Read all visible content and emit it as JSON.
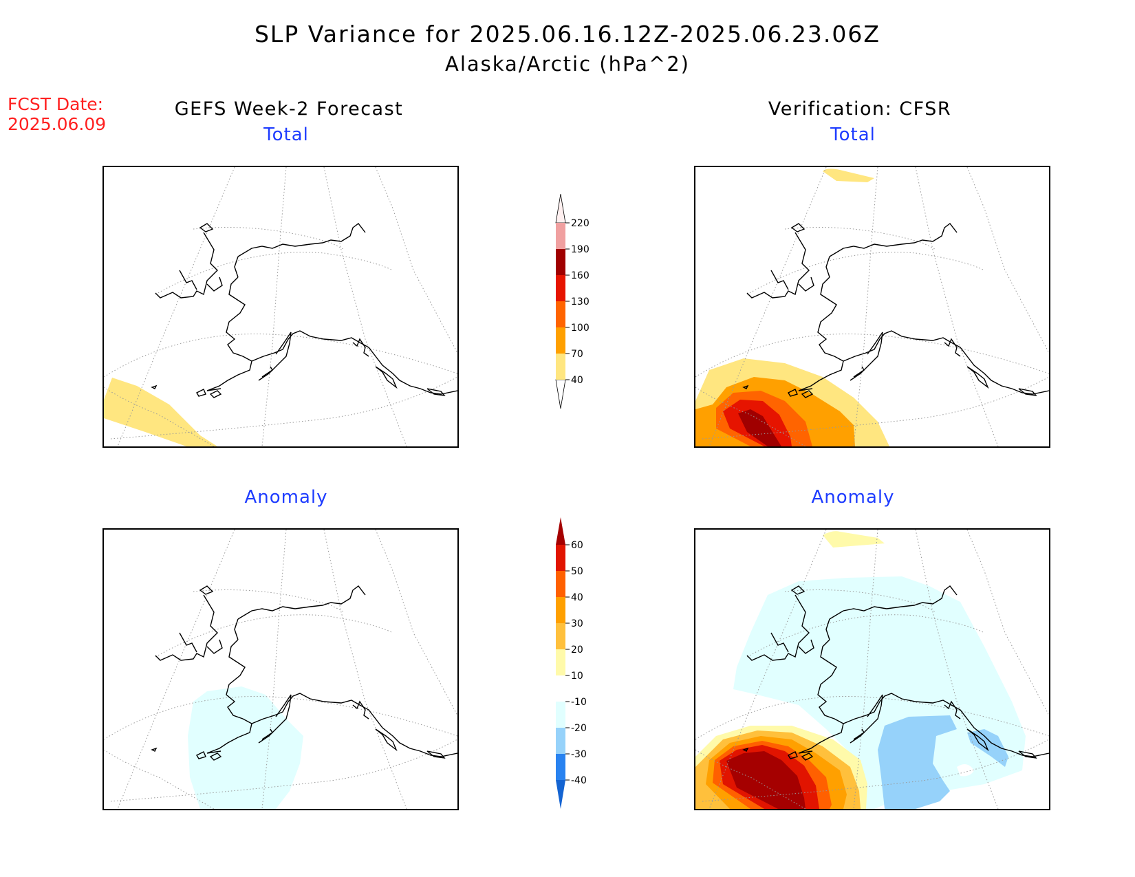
{
  "title": "SLP Variance for 2025.06.16.12Z-2025.06.23.06Z",
  "subtitle": "Alaska/Arctic (hPa^2)",
  "fcst_date_label": "FCST Date:",
  "fcst_date_value": "2025.06.09",
  "left_column_title": "GEFS Week-2 Forecast",
  "right_column_title": "Verification: CFSR",
  "panels": {
    "top_left": {
      "label": "Total"
    },
    "top_right": {
      "label": "Total"
    },
    "bottom_left": {
      "label": "Anomaly"
    },
    "bottom_right": {
      "label": "Anomaly"
    }
  },
  "colorbars": {
    "total": {
      "levels": [
        "40",
        "70",
        "100",
        "130",
        "160",
        "190",
        "220"
      ],
      "colors": [
        "#ffe680",
        "#ffa000",
        "#ff6400",
        "#e61400",
        "#a00000",
        "#f0a0a0",
        "#fff0f0"
      ]
    },
    "anomaly": {
      "levels": [
        "-40",
        "-30",
        "-20",
        "-10",
        "10",
        "20",
        "30",
        "40",
        "50",
        "60"
      ],
      "colors": [
        "#1464d2",
        "#2882f0",
        "#96d2fa",
        "#e1ffff",
        "#ffffff",
        "#fffaaa",
        "#ffc03c",
        "#ffa000",
        "#ff6000",
        "#e11400",
        "#a50000"
      ]
    }
  }
}
